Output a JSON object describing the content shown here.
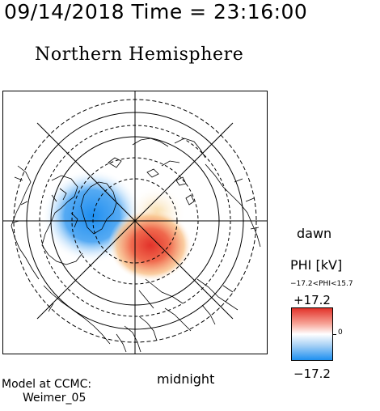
{
  "header": {
    "date_time": "09/14/2018 Time = 23:16:00"
  },
  "title": "Northern Hemisphere",
  "map": {
    "dawn_label": "dawn",
    "midnight_label": "midnight"
  },
  "colorbar": {
    "title": "PHI [kV]",
    "range_text": "−17.2<PHI<15.7",
    "max_label": "+17.2",
    "min_label": "−17.2",
    "zero_label": "0",
    "colors": {
      "positive": "#e2322a",
      "zero": "#ffffff",
      "negative": "#1e90f0"
    }
  },
  "model": {
    "line1": "Model at CCMC:",
    "line2": "Weimer_05"
  }
}
